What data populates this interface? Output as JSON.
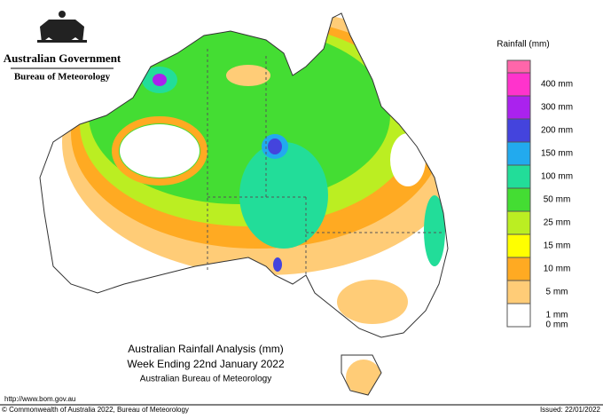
{
  "header": {
    "agency": "Australian Government",
    "bureau": "Bureau of Meteorology"
  },
  "legend": {
    "title": "Rainfall (mm)",
    "top_color": "#ff66aa",
    "items": [
      {
        "label": "400 mm",
        "color": "#ff33cc"
      },
      {
        "label": "300 mm",
        "color": "#aa22ee"
      },
      {
        "label": "200 mm",
        "color": "#4444dd"
      },
      {
        "label": "150 mm",
        "color": "#22aaee"
      },
      {
        "label": "100 mm",
        "color": "#22dd99"
      },
      {
        "label": "50 mm",
        "color": "#44dd33"
      },
      {
        "label": "25 mm",
        "color": "#bbee22"
      },
      {
        "label": "15 mm",
        "color": "#ffff00"
      },
      {
        "label": "10 mm",
        "color": "#ffaa22"
      },
      {
        "label": "5 mm",
        "color": "#ffcc77"
      },
      {
        "label": "1 mm",
        "color": "#ffffff"
      },
      {
        "label": "0 mm",
        "color": null
      }
    ]
  },
  "title": {
    "line1": "Australian Rainfall Analysis (mm)",
    "line2": "Week Ending 22nd January 2022",
    "line3": "Australian Bureau of Meteorology"
  },
  "footer": {
    "url": "http://www.bom.gov.au",
    "copyright": "© Commonwealth of Australia 2022, Bureau of Meteorology",
    "issued": "Issued: 22/01/2022"
  }
}
